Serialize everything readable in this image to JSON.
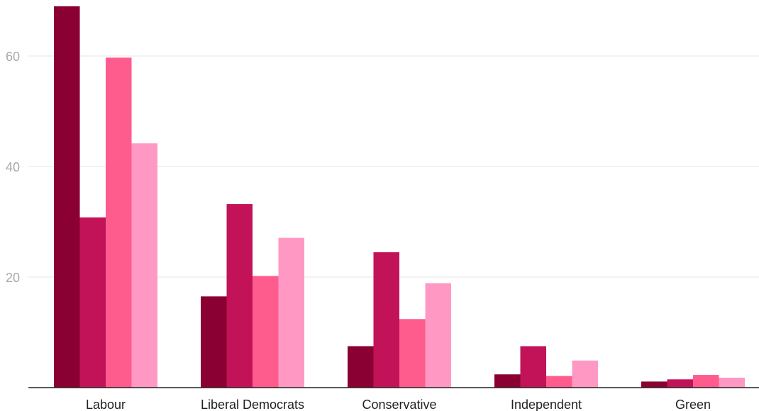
{
  "chart_data": {
    "type": "bar",
    "title": "",
    "xlabel": "",
    "ylabel": "",
    "categories": [
      "Labour",
      "Liberal Democrats",
      "Conservative",
      "Independent",
      "Green"
    ],
    "series": [
      {
        "color": "#8a0032",
        "values": [
          69,
          16.5,
          7.5,
          2.4,
          1.1
        ]
      },
      {
        "color": "#c21358",
        "values": [
          30.8,
          33.2,
          24.5,
          7.5,
          1.5
        ]
      },
      {
        "color": "#ff5c8e",
        "values": [
          59.7,
          20.2,
          12.4,
          2.1,
          2.3
        ]
      },
      {
        "color": "#ff99c4",
        "values": [
          44.2,
          27.1,
          18.9,
          4.9,
          1.8
        ]
      }
    ],
    "ylim": [
      0,
      70
    ],
    "yticks": [
      20,
      40,
      60
    ],
    "grid": true,
    "legend": "none"
  }
}
